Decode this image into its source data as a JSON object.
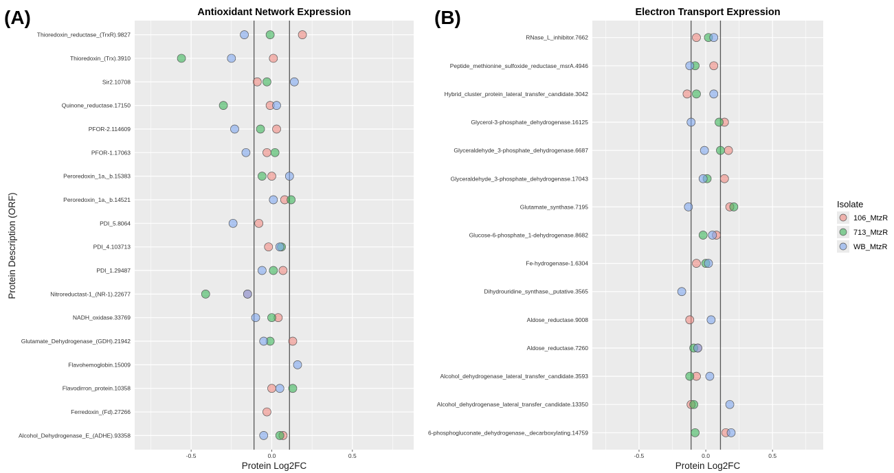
{
  "figure": {
    "panel_a_letter": "(A)",
    "panel_b_letter": "(B)",
    "ylabel": "Protein Description (ORF)"
  },
  "legend": {
    "title": "Isolate",
    "items": [
      {
        "label": "106_MtzR",
        "color": "#f08a82"
      },
      {
        "label": "713_MtzR",
        "color": "#3cb55a"
      },
      {
        "label": "WB_MtzR",
        "color": "#7fa6ee"
      }
    ]
  },
  "colors": {
    "panel_bg": "#ebebeb",
    "grid": "#ffffff",
    "vline": "#555555",
    "point_stroke": "#555555"
  },
  "chart_data": [
    {
      "type": "scatter",
      "title": "Antioxidant Network Expression",
      "xlabel": "Protein Log2FC",
      "xlim": [
        -0.85,
        0.88
      ],
      "xticks": [
        -0.5,
        0.0,
        0.5
      ],
      "xtick_labels": [
        "-0.5",
        "0.0",
        "0.5"
      ],
      "vlines": [
        -0.11,
        0.11
      ],
      "grid": true,
      "categories": [
        "Thioredoxin_reductase_(TrxR).9827",
        "Thioredoxin_(Trx).3910",
        "Sir2.10708",
        "Quinone_reductase.17150",
        "PFOR-2.114609",
        "PFOR-1.17063",
        "Peroredoxin_1a,_b.15383",
        "Peroredoxin_1a,_b.14521",
        "PDI_5.8064",
        "PDI_4.103713",
        "PDI_1.29487",
        "Nitroreductast-1_(NR-1).22677",
        "NADH_oxidase.33769",
        "Glutamate_Dehydrogenase_(GDH).21942",
        "Flavohemoglobin.15009",
        "Flavodirron_protein.10358",
        "Ferredoxin_(Fd).27266",
        "Alcohol_Dehydrogenase_E_(ADHE).93358"
      ],
      "series": [
        {
          "name": "106_MtzR",
          "values": [
            0.19,
            0.01,
            -0.09,
            -0.01,
            0.03,
            -0.03,
            0.0,
            0.08,
            -0.08,
            -0.02,
            0.07,
            -0.15,
            0.04,
            0.13,
            null,
            0.0,
            -0.03,
            0.07
          ]
        },
        {
          "name": "713_MtzR",
          "values": [
            -0.01,
            -0.56,
            -0.03,
            -0.3,
            -0.07,
            0.02,
            -0.06,
            0.12,
            null,
            0.06,
            0.01,
            -0.41,
            0.0,
            -0.01,
            null,
            0.13,
            null,
            0.05
          ]
        },
        {
          "name": "WB_MtzR",
          "values": [
            -0.17,
            -0.25,
            0.14,
            0.03,
            -0.23,
            -0.16,
            0.11,
            0.01,
            -0.24,
            0.05,
            -0.06,
            -0.15,
            -0.1,
            -0.05,
            0.16,
            0.05,
            null,
            -0.05
          ]
        }
      ]
    },
    {
      "type": "scatter",
      "title": "Electron Transport Expression",
      "xlabel": "Protein Log2FC",
      "xlim": [
        -0.85,
        0.88
      ],
      "xticks": [
        -0.5,
        0.0,
        0.5
      ],
      "xtick_labels": [
        "-0.5",
        "0.0",
        "0.5"
      ],
      "vlines": [
        -0.11,
        0.11
      ],
      "grid": true,
      "categories": [
        "RNase_L_inhibitor.7662",
        "Peptide_methionine_sulfoxide_reductase_msrA.4946",
        "Hybrid_cluster_protein_lateral_transfer_candidate.3042",
        "Glycerol-3-phosphate_dehydrogenase.16125",
        "Glyceraldehyde_3-phosphate_dehydrogenase.6687",
        "Glyceraldehyde_3-phosphate_dehydrogenase.17043",
        "Glutamate_synthase.7195",
        "Glucose-6-phosphate_1-dehydrogenase.8682",
        "Fe-hydrogenase-1.6304",
        "Dihydrouridine_synthase,_putative.3565",
        "Aldose_reductase.9008",
        "Aldose_reductase.7260",
        "Alcohol_dehydrogenase_lateral_transfer_candidate.3593",
        "Alcohol_dehydrogenase_lateral_transfer_candidate.13350",
        "6-phosphogluconate_dehydrogenase,_decarboxylating.14759"
      ],
      "series": [
        {
          "name": "106_MtzR",
          "values": [
            -0.07,
            0.06,
            -0.14,
            0.14,
            0.17,
            0.14,
            0.18,
            0.08,
            -0.07,
            null,
            -0.12,
            -0.06,
            -0.07,
            -0.11,
            0.15
          ]
        },
        {
          "name": "713_MtzR",
          "values": [
            0.02,
            -0.08,
            -0.07,
            0.1,
            0.11,
            0.01,
            0.21,
            -0.02,
            0.0,
            null,
            null,
            -0.09,
            -0.12,
            -0.09,
            -0.08
          ]
        },
        {
          "name": "WB_MtzR",
          "values": [
            0.06,
            -0.12,
            0.06,
            -0.11,
            -0.01,
            -0.02,
            -0.13,
            0.05,
            0.02,
            -0.18,
            0.04,
            -0.06,
            0.03,
            0.18,
            0.19
          ]
        }
      ]
    }
  ]
}
